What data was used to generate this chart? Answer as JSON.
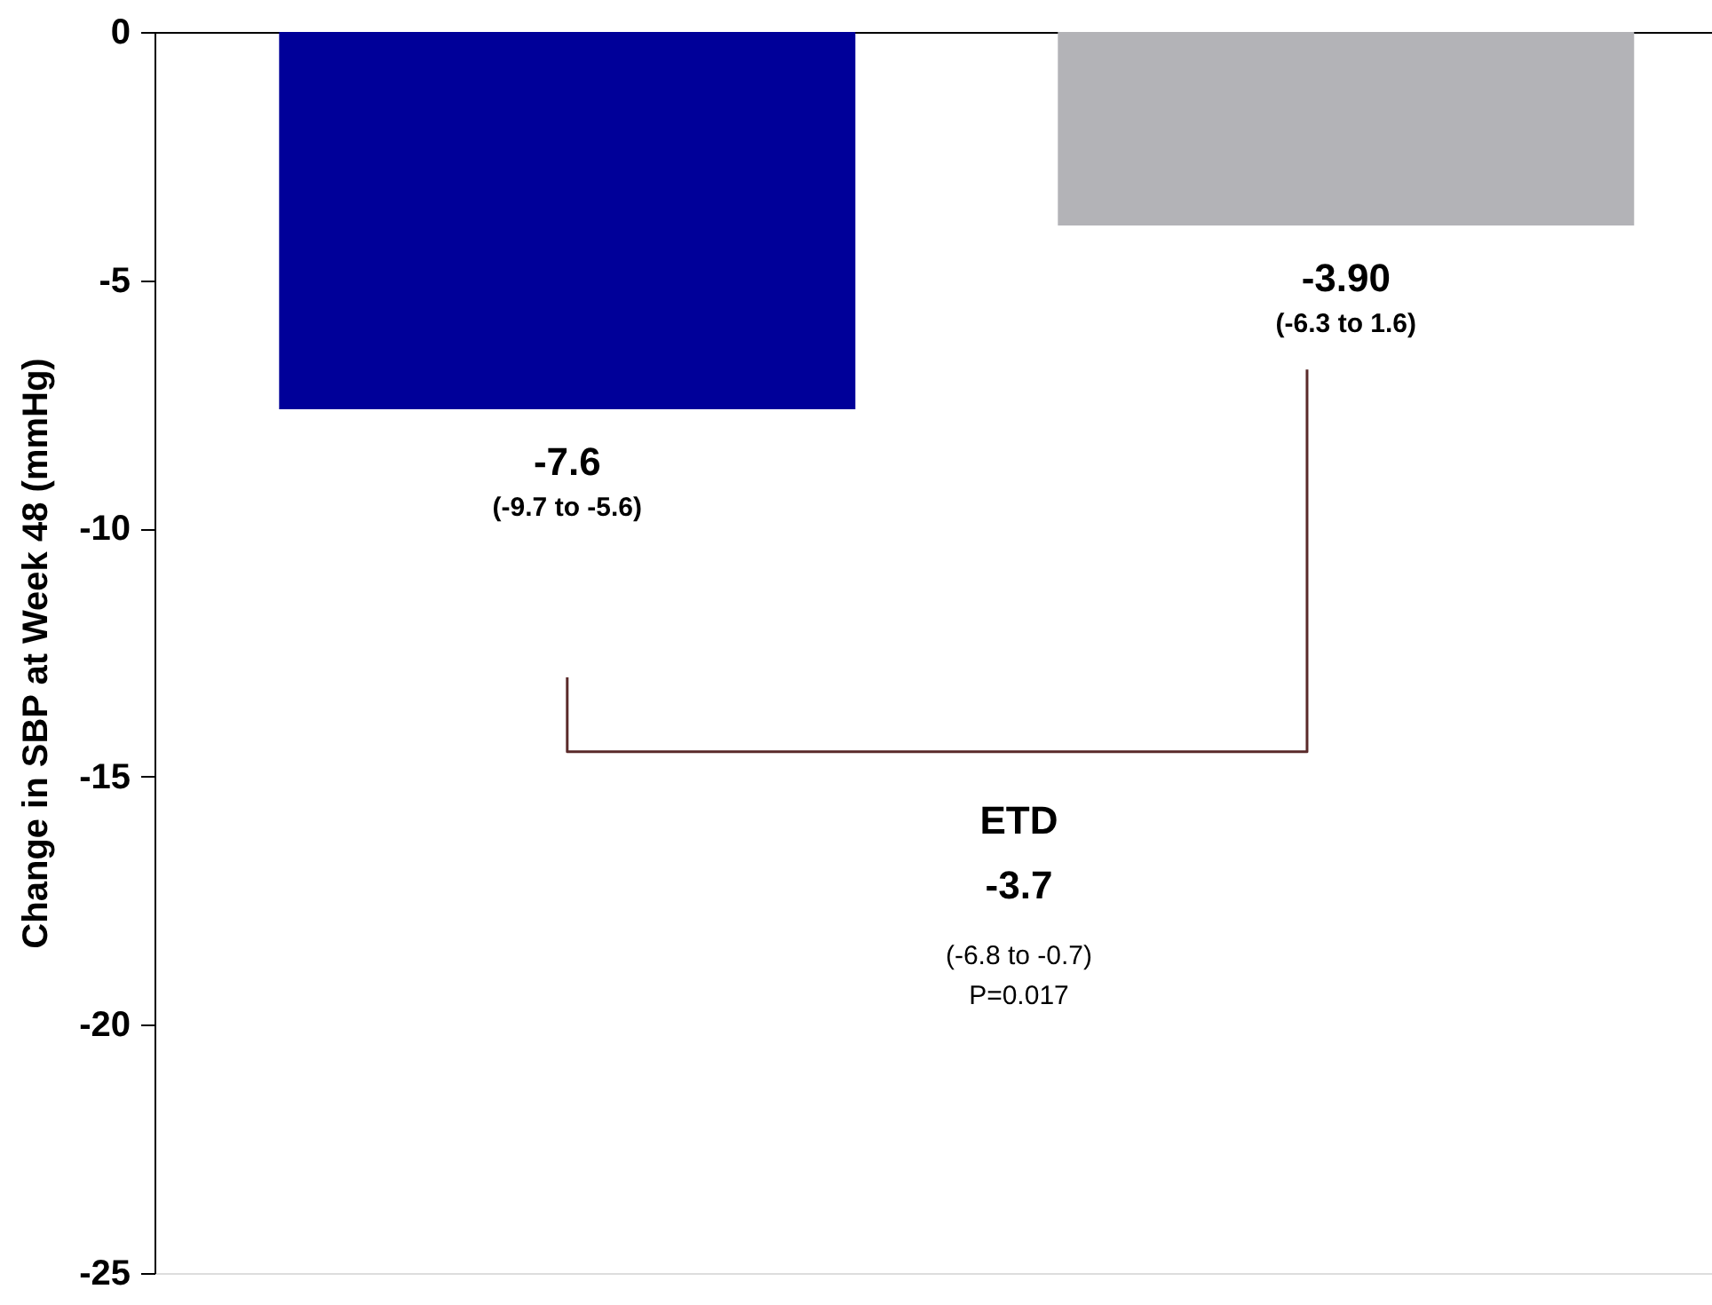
{
  "chart_data": {
    "type": "bar",
    "ylabel": "Change in SBP at Week 48 (mmHg)",
    "categories": [
      null,
      null
    ],
    "values": [
      -7.6,
      -3.9
    ],
    "colors": [
      "#000099",
      "#b3b3b7"
    ],
    "value_labels": [
      "-7.6",
      "-3.90"
    ],
    "annotations": [
      "(-9.7 to -5.6)",
      "(-6.3 to 1.6)",
      "ETD",
      "-3.7",
      "(-6.8 to -0.7)",
      "P=0.017"
    ],
    "ylim": [
      -25,
      0
    ],
    "yticks": [
      0,
      -5,
      -10,
      -15,
      -20,
      -25
    ],
    "grid": false
  }
}
